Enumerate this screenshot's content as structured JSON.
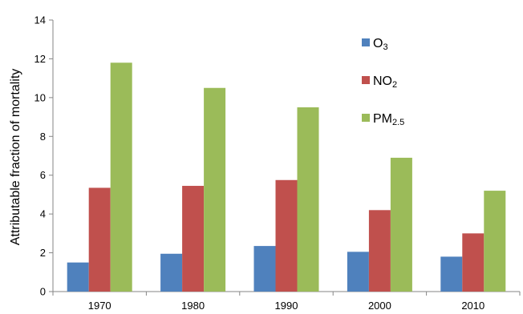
{
  "chart_data": {
    "type": "bar",
    "categories": [
      "1970",
      "1980",
      "1990",
      "2000",
      "2010"
    ],
    "series": [
      {
        "name": "O3",
        "name_main": "O",
        "name_sub": "3",
        "color": "#4F81BD",
        "values": [
          1.5,
          1.95,
          2.35,
          2.05,
          1.8
        ]
      },
      {
        "name": "NO2",
        "name_main": "NO",
        "name_sub": "2",
        "color": "#C0504D",
        "values": [
          5.35,
          5.45,
          5.75,
          4.2,
          3.0
        ]
      },
      {
        "name": "PM2.5",
        "name_main": "PM",
        "name_sub": "2.5",
        "color": "#9BBB59",
        "values": [
          11.8,
          10.5,
          9.5,
          6.9,
          5.2
        ]
      }
    ],
    "title": "",
    "xlabel": "",
    "ylabel": "Attributable fraction of mortality",
    "ylim": [
      0,
      14
    ],
    "yticks": [
      0,
      2,
      4,
      6,
      8,
      10,
      12,
      14
    ],
    "grid": false,
    "legend_position": "top-right"
  }
}
